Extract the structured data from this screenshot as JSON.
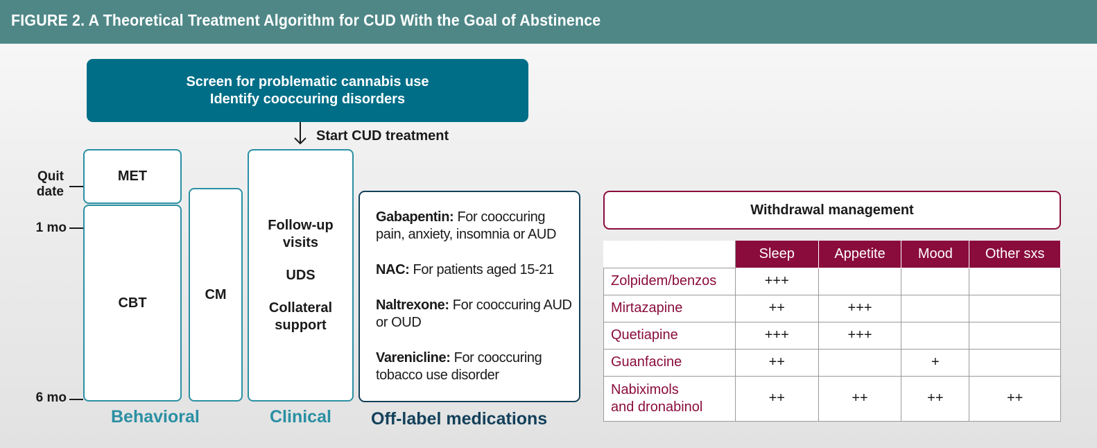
{
  "header": {
    "title": "FIGURE 2. A Theoretical Treatment Algorithm for CUD With the Goal of Abstinence"
  },
  "screen": {
    "line1": "Screen for problematic cannabis use",
    "line2": "Identify cooccuring disorders"
  },
  "start_label": "Start CUD treatment",
  "timeline": {
    "quit_line1": "Quit",
    "quit_line2": "date",
    "one_month": "1 mo",
    "six_month": "6 mo"
  },
  "behavioral": {
    "met": "MET",
    "cbt": "CBT",
    "cm": "CM",
    "label": "Behavioral"
  },
  "clinical": {
    "item1_line1": "Follow-up",
    "item1_line2": "visits",
    "item2": "UDS",
    "item3_line1": "Collateral",
    "item3_line2": "support",
    "label": "Clinical"
  },
  "off_label": {
    "label": "Off-label medications",
    "drugs": [
      {
        "name": "Gabapentin:",
        "desc": " For cooccuring pain, anxiety, insomnia or AUD"
      },
      {
        "name": "NAC:",
        "desc": " For patients aged 15-21"
      },
      {
        "name": "Naltrexone:",
        "desc": " For cooccuring AUD or OUD"
      },
      {
        "name": "Varenicline:",
        "desc": " For cooccuring tobacco use disorder"
      }
    ]
  },
  "withdrawal": {
    "title": "Withdrawal management",
    "columns": [
      "Sleep",
      "Appetite",
      "Mood",
      "Other sxs"
    ],
    "rows": [
      {
        "drug": "Zolpidem/benzos",
        "cells": [
          "+++",
          "",
          "",
          ""
        ]
      },
      {
        "drug": "Mirtazapine",
        "cells": [
          "++",
          "+++",
          "",
          ""
        ]
      },
      {
        "drug": "Quetiapine",
        "cells": [
          "+++",
          "+++",
          "",
          ""
        ]
      },
      {
        "drug": "Guanfacine",
        "cells": [
          "++",
          "",
          "+",
          ""
        ]
      },
      {
        "drug_line1": "Nabiximols",
        "drug_line2": "and dronabinol",
        "cells": [
          "++",
          "++",
          "++",
          "++"
        ]
      }
    ]
  },
  "colors": {
    "header": "#4f8787",
    "screen": "#006e87",
    "behavioral": "#2a8fa3",
    "offlabel": "#13405a",
    "withdrawal": "#8a0c3c"
  }
}
